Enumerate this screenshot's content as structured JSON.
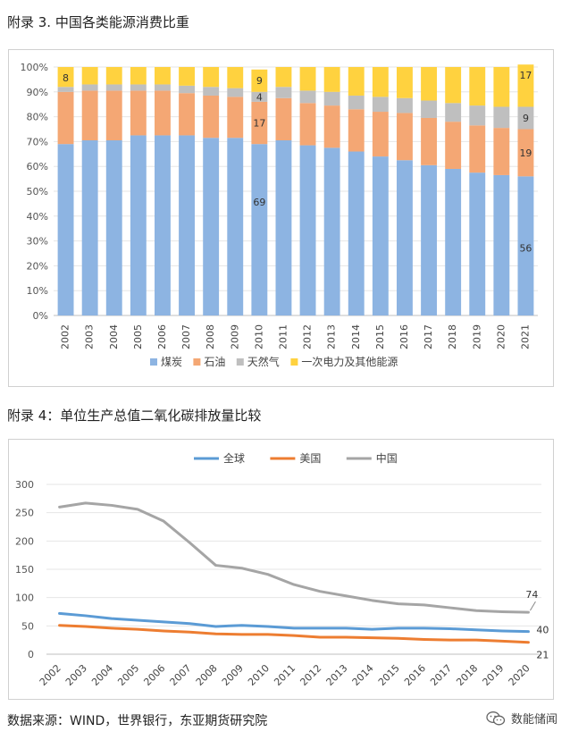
{
  "headings": {
    "fig3": "附录 3. 中国各类能源消费比重",
    "fig4": "附录 4：单位生产总值二氧化碳排放量比较"
  },
  "footer": {
    "source": "数据来源：WIND，世界银行，东亚期货研究院",
    "watermark": "数能储闻"
  },
  "chart_data": [
    {
      "type": "bar",
      "stacked": true,
      "title": "中国各类能源消费比重",
      "categories": [
        "2002",
        "2003",
        "2004",
        "2005",
        "2006",
        "2007",
        "2008",
        "2009",
        "2010",
        "2011",
        "2012",
        "2013",
        "2014",
        "2015",
        "2016",
        "2017",
        "2018",
        "2019",
        "2020",
        "2021"
      ],
      "series": [
        {
          "name": "煤炭",
          "color": "#8db4e2",
          "values": [
            69,
            70.5,
            70.5,
            72.5,
            72.5,
            72.5,
            71.5,
            71.5,
            69,
            70.5,
            68.5,
            67.5,
            66,
            64,
            62.5,
            60.5,
            59,
            57.5,
            56.5,
            56
          ]
        },
        {
          "name": "石油",
          "color": "#f4a774",
          "values": [
            21,
            20,
            20,
            18,
            18,
            17,
            17,
            16.5,
            17,
            17,
            17,
            17,
            17,
            18,
            19,
            19,
            19,
            19,
            19,
            19
          ]
        },
        {
          "name": "天然气",
          "color": "#bfbfbf",
          "values": [
            2,
            2.5,
            2.5,
            2.5,
            2.5,
            3,
            3.5,
            3.5,
            4,
            4.5,
            5,
            5.5,
            5.5,
            6,
            6,
            7,
            7.5,
            8,
            8.5,
            9
          ]
        },
        {
          "name": "一次电力及其他能源",
          "color": "#ffd23f",
          "values": [
            8,
            7,
            7,
            7,
            7,
            7.5,
            8,
            8.5,
            9,
            8,
            9.5,
            10,
            11.5,
            12,
            12.5,
            13.5,
            14.5,
            15.5,
            16,
            17
          ]
        }
      ],
      "ylim": [
        0,
        100
      ],
      "yticks": [
        "0%",
        "10%",
        "20%",
        "30%",
        "40%",
        "50%",
        "60%",
        "70%",
        "80%",
        "90%",
        "100%"
      ],
      "annotations": [
        {
          "category": "2002",
          "series": "一次电力及其他能源",
          "label": "8"
        },
        {
          "category": "2010",
          "series": "一次电力及其他能源",
          "label": "9"
        },
        {
          "category": "2010",
          "series": "天然气",
          "label": "4"
        },
        {
          "category": "2010",
          "series": "石油",
          "label": "17"
        },
        {
          "category": "2010",
          "series": "煤炭",
          "label": "69"
        },
        {
          "category": "2021",
          "series": "一次电力及其他能源",
          "label": "17"
        },
        {
          "category": "2021",
          "series": "天然气",
          "label": "9"
        },
        {
          "category": "2021",
          "series": "石油",
          "label": "19"
        },
        {
          "category": "2021",
          "series": "煤炭",
          "label": "56"
        }
      ],
      "legend_position": "bottom"
    },
    {
      "type": "line",
      "title": "单位生产总值二氧化碳排放量比较",
      "categories": [
        "2002",
        "2003",
        "2004",
        "2005",
        "2006",
        "2007",
        "2008",
        "2009",
        "2010",
        "2011",
        "2012",
        "2013",
        "2014",
        "2015",
        "2016",
        "2017",
        "2018",
        "2019",
        "2020"
      ],
      "series": [
        {
          "name": "全球",
          "color": "#5b9bd5",
          "values": [
            72,
            68,
            63,
            60,
            57,
            54,
            49,
            51,
            49,
            46,
            46,
            46,
            44,
            46,
            46,
            45,
            43,
            41,
            40
          ]
        },
        {
          "name": "美国",
          "color": "#ed7d31",
          "values": [
            51,
            49,
            46,
            44,
            41,
            39,
            36,
            35,
            35,
            33,
            30,
            30,
            29,
            28,
            26,
            25,
            25,
            23,
            21
          ]
        },
        {
          "name": "中国",
          "color": "#a5a5a5",
          "values": [
            260,
            267,
            263,
            256,
            235,
            197,
            157,
            152,
            141,
            123,
            111,
            103,
            95,
            89,
            87,
            82,
            77,
            75,
            74
          ]
        }
      ],
      "ylim": [
        0,
        300
      ],
      "yticks": [
        "0",
        "50",
        "100",
        "150",
        "200",
        "250",
        "300"
      ],
      "end_labels": [
        {
          "series": "中国",
          "label": "74"
        },
        {
          "series": "全球",
          "label": "40"
        },
        {
          "series": "美国",
          "label": "21"
        }
      ],
      "legend_position": "top"
    }
  ]
}
